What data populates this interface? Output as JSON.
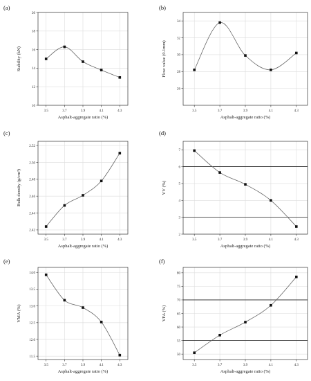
{
  "chart_data": [
    {
      "type": "line",
      "panel_label": "(a)",
      "xlabel": "Asphalt-aggregate ratio (%)",
      "ylabel": "Stability (kN)",
      "categories": [
        "3.5",
        "3.7",
        "3.9",
        "4.1",
        "4.3"
      ],
      "values": [
        15.0,
        16.3,
        14.7,
        13.8,
        13.0
      ],
      "ylim": [
        10,
        20
      ],
      "yticks": [
        10,
        12,
        14,
        16,
        18,
        20
      ],
      "ytick_labels": [
        "10",
        "12",
        "14",
        "16",
        "18",
        "20"
      ],
      "reference_lines": [],
      "grid": true
    },
    {
      "type": "line",
      "panel_label": "(b)",
      "xlabel": "Asphalt-aggregate ratio (%)",
      "ylabel": "Flow value (0.1mm)",
      "categories": [
        "3.5",
        "3.7",
        "3.9",
        "4.1",
        "4.3"
      ],
      "values": [
        28.2,
        33.8,
        29.9,
        28.2,
        30.2
      ],
      "ylim": [
        24,
        35
      ],
      "yticks": [
        26,
        28,
        30,
        32,
        34
      ],
      "ytick_labels": [
        "26",
        "28",
        "30",
        "32",
        "34"
      ],
      "reference_lines": [],
      "grid": true
    },
    {
      "type": "line",
      "panel_label": "(c)",
      "xlabel": "Asphalt-aggregate ratio (%)",
      "ylabel": "Bulk density (g/cm³)",
      "categories": [
        "3.5",
        "3.7",
        "3.9",
        "4.1",
        "4.3"
      ],
      "values": [
        2.424,
        2.449,
        2.461,
        2.478,
        2.511
      ],
      "ylim": [
        2.415,
        2.525
      ],
      "yticks": [
        2.42,
        2.44,
        2.46,
        2.48,
        2.5,
        2.52
      ],
      "ytick_labels": [
        "2.42",
        "2.44",
        "2.46",
        "2.48",
        "2.50",
        "2.52"
      ],
      "reference_lines": [],
      "grid": true
    },
    {
      "type": "line",
      "panel_label": "(d)",
      "xlabel": "Asphalt-aggregate ratio (%)",
      "ylabel": "VV (%)",
      "categories": [
        "3.5",
        "3.7",
        "3.9",
        "4.1",
        "4.3"
      ],
      "values": [
        6.95,
        5.65,
        4.95,
        4.0,
        2.45
      ],
      "ylim": [
        2,
        7.5
      ],
      "yticks": [
        2,
        3,
        4,
        5,
        6,
        7
      ],
      "ytick_labels": [
        "2",
        "3",
        "4",
        "5",
        "6",
        "7"
      ],
      "reference_lines": [
        3,
        6
      ],
      "grid": true
    },
    {
      "type": "line",
      "panel_label": "(e)",
      "xlabel": "Asphalt-aggregate ratio (%)",
      "ylabel": "VMA (%)",
      "categories": [
        "3.5",
        "3.7",
        "3.9",
        "4.1",
        "4.3"
      ],
      "values": [
        13.93,
        13.17,
        12.95,
        12.52,
        11.53
      ],
      "ylim": [
        11.4,
        14.15
      ],
      "yticks": [
        11.5,
        12.0,
        12.5,
        13.0,
        13.5,
        14.0
      ],
      "ytick_labels": [
        "11.5",
        "12.0",
        "12.5",
        "13.0",
        "13.5",
        "14.0"
      ],
      "reference_lines": [],
      "grid": true
    },
    {
      "type": "line",
      "panel_label": "(f)",
      "xlabel": "Asphalt-aggregate ratio (%)",
      "ylabel": "VFA (%)",
      "categories": [
        "3.5",
        "3.7",
        "3.9",
        "4.1",
        "4.3"
      ],
      "values": [
        50.5,
        57.0,
        61.8,
        68.0,
        78.5
      ],
      "ylim": [
        48,
        82
      ],
      "yticks": [
        50,
        55,
        60,
        65,
        70,
        75,
        80
      ],
      "ytick_labels": [
        "50",
        "55",
        "60",
        "65",
        "70",
        "75",
        "80"
      ],
      "reference_lines": [
        55,
        70
      ],
      "grid": true
    }
  ]
}
